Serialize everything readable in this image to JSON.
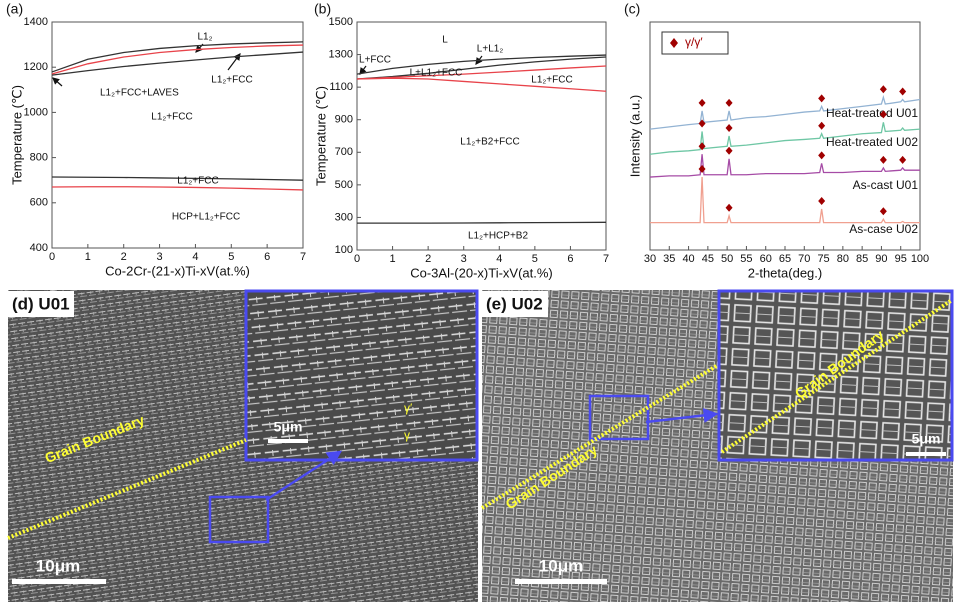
{
  "chart_data": [
    {
      "type": "line",
      "panel_label": "(a)",
      "xlabel": "Co-2Cr-(21-x)Ti-xV(at.%)",
      "ylabel": "Temperature (℃)",
      "x": [
        0,
        1,
        2,
        3,
        4,
        5,
        6,
        7
      ],
      "xlim": [
        0,
        7
      ],
      "xticks": [
        0,
        1,
        2,
        3,
        4,
        5,
        6,
        7
      ],
      "ylim": [
        400,
        1400
      ],
      "yticks": [
        400,
        600,
        800,
        1000,
        1200,
        1400
      ],
      "series": [
        {
          "color": "#333333",
          "values": [
            1179,
            1235,
            1265,
            1283,
            1295,
            1303,
            1308,
            1312
          ]
        },
        {
          "color": "#e8434a",
          "values": [
            1170,
            1215,
            1245,
            1265,
            1278,
            1287,
            1294,
            1298
          ]
        },
        {
          "color": "#333333",
          "values": [
            1165,
            1185,
            1203,
            1218,
            1232,
            1245,
            1256,
            1267
          ]
        },
        {
          "color": "#333333",
          "values": [
            714,
            713,
            712,
            710,
            708,
            706,
            703,
            700
          ]
        },
        {
          "color": "#e8434a",
          "values": [
            670,
            671,
            671,
            670,
            668,
            665,
            661,
            657
          ]
        }
      ],
      "annotations": [
        "L1₂",
        "L1₂+FCC",
        "L1₂+FCC+LAVES",
        "L1₂+FCC",
        "L1₂+FCC",
        "HCP+L1₂+FCC"
      ]
    },
    {
      "type": "line",
      "panel_label": "(b)",
      "xlabel": "Co-3Al-(20-x)Ti-xV(at.%)",
      "ylabel": "Temperature (℃)",
      "x": [
        0,
        1,
        2,
        3,
        4,
        5,
        6,
        7
      ],
      "xlim": [
        0,
        7
      ],
      "xticks": [
        0,
        1,
        2,
        3,
        4,
        5,
        6,
        7
      ],
      "ylim": [
        100,
        1500
      ],
      "yticks": [
        100,
        300,
        500,
        700,
        900,
        1100,
        1300,
        1500
      ],
      "series": [
        {
          "color": "#333333",
          "values": [
            1180,
            1215,
            1240,
            1258,
            1272,
            1282,
            1290,
            1297
          ]
        },
        {
          "color": "#333333",
          "values": [
            1150,
            1165,
            1185,
            1210,
            1235,
            1255,
            1272,
            1285
          ]
        },
        {
          "color": "#e8434a",
          "values": [
            1150,
            1160,
            1170,
            1180,
            1192,
            1205,
            1218,
            1230
          ]
        },
        {
          "color": "#e8434a",
          "values": [
            1150,
            1155,
            1150,
            1135,
            1120,
            1105,
            1090,
            1075
          ]
        },
        {
          "color": "#333333",
          "values": [
            265,
            265,
            265,
            266,
            267,
            268,
            269,
            270
          ]
        }
      ],
      "annotations": [
        "L",
        "L+FCC",
        "L+L1₂",
        "L+L1₂+FCC",
        "L1₂+FCC",
        "L1₂+B2+FCC",
        "L1₂+HCP+B2"
      ]
    },
    {
      "type": "line",
      "panel_label": "(c)",
      "xlabel": "2-theta(deg.)",
      "ylabel": "Intensity (a.u.)",
      "x": [
        30,
        35,
        40,
        43,
        43.5,
        44,
        50,
        50.5,
        51,
        55,
        60,
        65,
        70,
        74,
        74.5,
        75,
        80,
        85,
        90,
        90.5,
        91,
        95,
        95.5,
        96,
        100
      ],
      "xlim": [
        30,
        100
      ],
      "xticks": [
        30,
        35,
        40,
        45,
        50,
        55,
        60,
        65,
        70,
        75,
        80,
        85,
        90,
        95,
        100
      ],
      "ylim": [
        0,
        100
      ],
      "legend": {
        "label": "γ/γ′",
        "color": "#a00000"
      },
      "series": [
        {
          "name": "Heat-treated U01",
          "color": "#93b3d3",
          "values": [
            53,
            54,
            55,
            55.5,
            61,
            56,
            57,
            61,
            57,
            58,
            58.5,
            59.5,
            60.5,
            61,
            63,
            61,
            62,
            63,
            64,
            67,
            64,
            65,
            66,
            65,
            66
          ],
          "marker_x": [
            43.5,
            50.5,
            74.5,
            90.5,
            95.5
          ]
        },
        {
          "name": "Heat-treated U02",
          "color": "#6fc7a5",
          "values": [
            42,
            43,
            43.5,
            44,
            52,
            44.5,
            45.5,
            50,
            45.5,
            46,
            47,
            48,
            48.5,
            49,
            51,
            49,
            50,
            51,
            51.5,
            56,
            52,
            52.5,
            53.5,
            52.5,
            53
          ],
          "marker_x": [
            43.5,
            50.5,
            74.5,
            90.5
          ]
        },
        {
          "name": "As-cast U01",
          "color": "#a64ca6",
          "values": [
            32,
            32.5,
            32.5,
            33,
            42,
            33,
            33,
            40,
            33,
            33,
            33.5,
            33.5,
            33.5,
            34,
            38,
            34,
            34,
            34.5,
            34.5,
            36,
            34.5,
            35,
            36,
            35,
            35
          ],
          "marker_x": [
            43.5,
            50.5,
            74.5,
            90.5,
            95.5
          ]
        },
        {
          "name": "As-case U02",
          "color": "#f0a090",
          "values": [
            12,
            12,
            12,
            12,
            32,
            12,
            12,
            15,
            12,
            12,
            12,
            12,
            12,
            12,
            18,
            12,
            12,
            12,
            12,
            13.5,
            12,
            12,
            12.5,
            12,
            12
          ],
          "marker_x": [
            43.5,
            50.5,
            74.5,
            90.5
          ]
        }
      ]
    }
  ],
  "micrographs": [
    {
      "label": "(d) U01",
      "scale_bar": "10μm",
      "inset_scale_bar": "5μm",
      "grain_boundary_labels": [
        "Grain Boundary"
      ],
      "phase_labels": [
        "γ′",
        "γ"
      ]
    },
    {
      "label": "(e) U02",
      "scale_bar": "10μm",
      "inset_scale_bar": "5μm",
      "grain_boundary_labels": [
        "Grain Boundary",
        "Grain Boundary"
      ]
    }
  ]
}
